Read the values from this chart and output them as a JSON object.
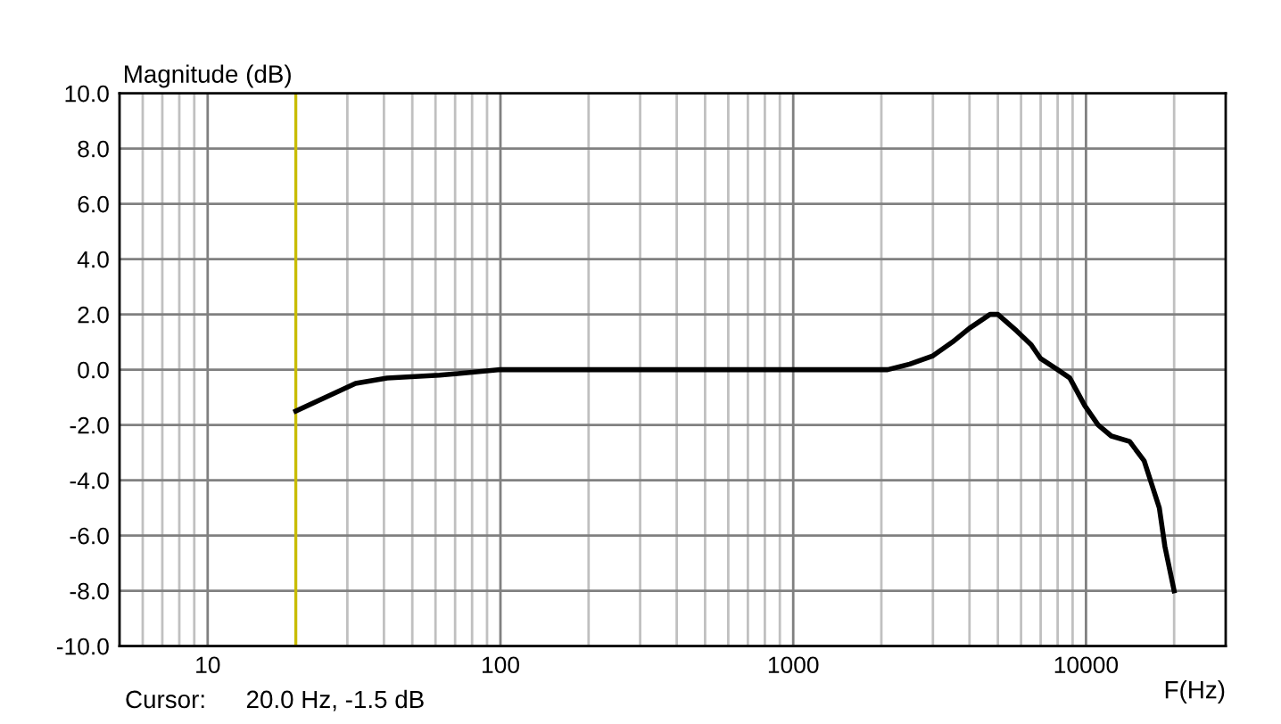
{
  "chart_data": {
    "type": "line",
    "xlabel": "F(Hz)",
    "ylabel": "Magnitude (dB)",
    "annotations": [
      "Cursor:",
      "20.0 Hz, -1.5 dB"
    ],
    "log": "x",
    "grid": true,
    "line_style": "solid",
    "marker": "none",
    "x": [
      20,
      32,
      41,
      62,
      100,
      2100,
      2500,
      3000,
      3500,
      4000,
      4700,
      5000,
      5800,
      6500,
      7000,
      8000,
      8800,
      9900,
      11000,
      12200,
      14100,
      15800,
      17800,
      18600,
      20000
    ],
    "series": [
      {
        "color": "#000000",
        "values": [
          -1.5,
          -0.5,
          -0.3,
          -0.2,
          0.0,
          0.0,
          0.2,
          0.5,
          1.0,
          1.5,
          2.0,
          2.0,
          1.4,
          0.9,
          0.4,
          0.0,
          -0.3,
          -1.3,
          -2.0,
          -2.4,
          -2.6,
          -3.3,
          -5.0,
          -6.4,
          -8.0
        ]
      }
    ],
    "xlim": [
      5,
      30000
    ],
    "ylim": [
      -10,
      10
    ],
    "xticks": [
      {
        "value": 6,
        "label": null
      },
      {
        "value": 7,
        "label": null
      },
      {
        "value": 8,
        "label": null
      },
      {
        "value": 9,
        "label": null
      },
      10,
      {
        "value": 20,
        "label": null
      },
      {
        "value": 30,
        "label": null
      },
      {
        "value": 40,
        "label": null
      },
      {
        "value": 50,
        "label": null
      },
      {
        "value": 60,
        "label": null
      },
      {
        "value": 70,
        "label": null
      },
      {
        "value": 80,
        "label": null
      },
      {
        "value": 90,
        "label": null
      },
      100,
      {
        "value": 200,
        "label": null
      },
      {
        "value": 300,
        "label": null
      },
      {
        "value": 400,
        "label": null
      },
      {
        "value": 500,
        "label": null
      },
      {
        "value": 600,
        "label": null
      },
      {
        "value": 700,
        "label": null
      },
      {
        "value": 800,
        "label": null
      },
      {
        "value": 900,
        "label": null
      },
      1000,
      {
        "value": 2000,
        "label": null
      },
      {
        "value": 3000,
        "label": null
      },
      {
        "value": 4000,
        "label": null
      },
      {
        "value": 5000,
        "label": null
      },
      {
        "value": 6000,
        "label": null
      },
      {
        "value": 7000,
        "label": null
      },
      {
        "value": 8000,
        "label": null
      },
      {
        "value": 9000,
        "label": null
      },
      10000,
      {
        "value": 20000,
        "label": null
      }
    ],
    "yticks": [
      {
        "value": -10,
        "label": "-10.0"
      },
      {
        "value": -8,
        "label": "-8.0"
      },
      {
        "value": -6,
        "label": "-6.0"
      },
      {
        "value": -4,
        "label": "-4.0"
      },
      {
        "value": -2,
        "label": "-2.0"
      },
      {
        "value": 0,
        "label": "0.0"
      },
      {
        "value": 2,
        "label": "2.0"
      },
      {
        "value": 4,
        "label": "4.0"
      },
      {
        "value": 6,
        "label": "6.0"
      },
      {
        "value": 8,
        "label": "8.0"
      },
      {
        "value": 10,
        "label": "10.0"
      }
    ],
    "ref_lines": [
      {
        "axis": "x",
        "value": 20,
        "color": "#c8bc00"
      }
    ]
  }
}
